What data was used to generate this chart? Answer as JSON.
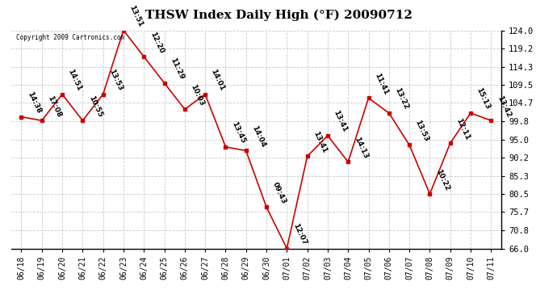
{
  "title": "THSW Index Daily High (°F) 20090712",
  "copyright": "Copyright 2009 Cartronics.com",
  "background_color": "#ffffff",
  "plot_bg_color": "#ffffff",
  "grid_color": "#c8c8c8",
  "line_color": "#cc0000",
  "marker_color": "#cc0000",
  "dates": [
    "06/18",
    "06/19",
    "06/20",
    "06/21",
    "06/22",
    "06/23",
    "06/24",
    "06/25",
    "06/26",
    "06/27",
    "06/28",
    "06/29",
    "06/30",
    "07/01",
    "07/02",
    "07/03",
    "07/04",
    "07/05",
    "07/06",
    "07/07",
    "07/08",
    "07/09",
    "07/10",
    "07/11"
  ],
  "values": [
    101.0,
    100.0,
    107.0,
    100.0,
    107.0,
    124.0,
    117.0,
    110.0,
    103.0,
    107.0,
    93.0,
    92.0,
    77.0,
    66.0,
    90.5,
    96.0,
    89.0,
    106.0,
    102.0,
    93.5,
    80.5,
    94.0,
    102.0,
    100.0
  ],
  "time_labels": [
    "14:38",
    "17:08",
    "14:51",
    "10:55",
    "13:53",
    "13:51",
    "12:20",
    "11:29",
    "10:03",
    "14:01",
    "13:45",
    "14:04",
    "09:43",
    "12:07",
    "13:41",
    "13:41",
    "14:13",
    "11:41",
    "13:22",
    "13:53",
    "10:22",
    "12:11",
    "15:13",
    "13:42"
  ],
  "ylim": [
    66.0,
    124.0
  ],
  "yticks": [
    66.0,
    70.8,
    75.7,
    80.5,
    85.3,
    90.2,
    95.0,
    99.8,
    104.7,
    109.5,
    114.3,
    119.2,
    124.0
  ],
  "ylabel_fontsize": 7.5,
  "title_fontsize": 11,
  "tick_fontsize": 7,
  "label_fontsize": 6.5,
  "copyright_fontsize": 5.5
}
